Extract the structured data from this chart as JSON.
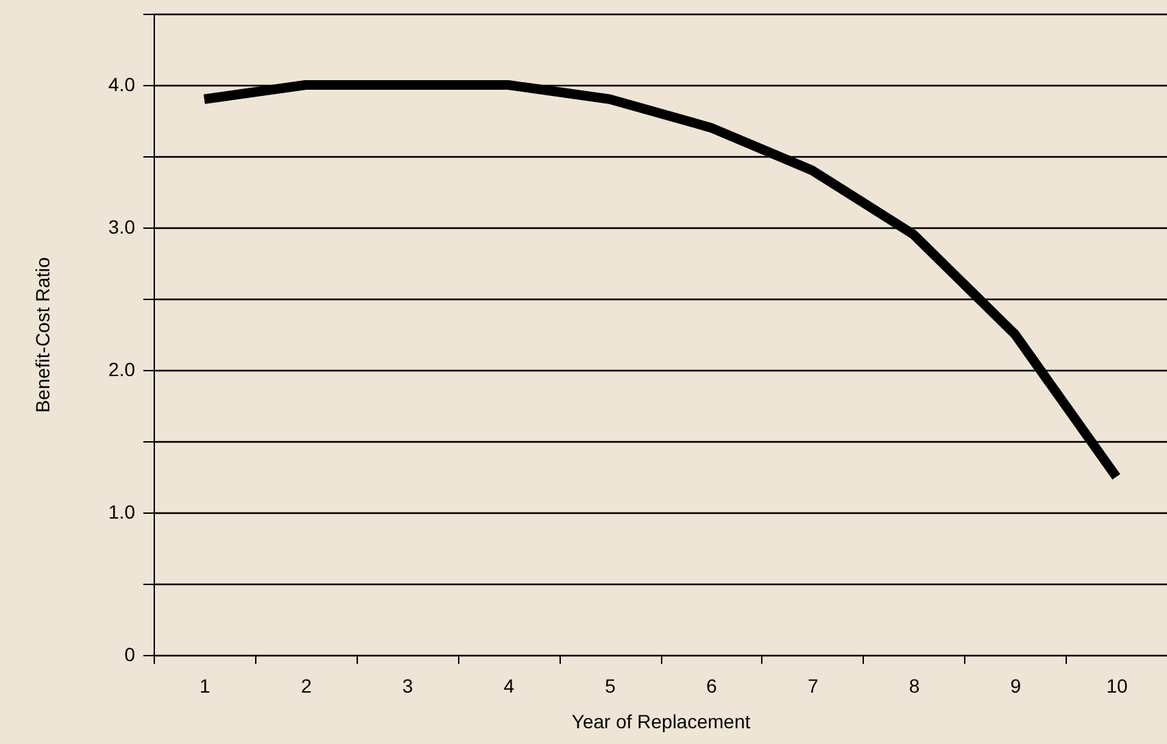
{
  "chart_data": {
    "type": "line",
    "xlabel": "Year of Replacement",
    "ylabel": "Benefit-Cost Ratio",
    "categories": [
      "1",
      "2",
      "3",
      "4",
      "5",
      "6",
      "7",
      "8",
      "9",
      "10"
    ],
    "series": [
      {
        "color": "#000000",
        "values": [
          3.9,
          4.0,
          4.0,
          4.0,
          3.9,
          3.7,
          3.4,
          2.95,
          2.25,
          1.25
        ]
      }
    ],
    "ylim": [
      0,
      4.5
    ],
    "yticks": [
      0,
      {
        "value": 0.5,
        "label": null
      },
      {
        "value": 1,
        "label": "1.0"
      },
      {
        "value": 1.5,
        "label": null
      },
      {
        "value": 2,
        "label": "2.0"
      },
      {
        "value": 2.5,
        "label": null
      },
      {
        "value": 3,
        "label": "3.0"
      },
      {
        "value": 3.5,
        "label": null
      },
      {
        "value": 4,
        "label": "4.0"
      },
      {
        "value": 4.5,
        "label": null
      }
    ],
    "grid": "y",
    "marker": "none",
    "line_style": "solid"
  }
}
